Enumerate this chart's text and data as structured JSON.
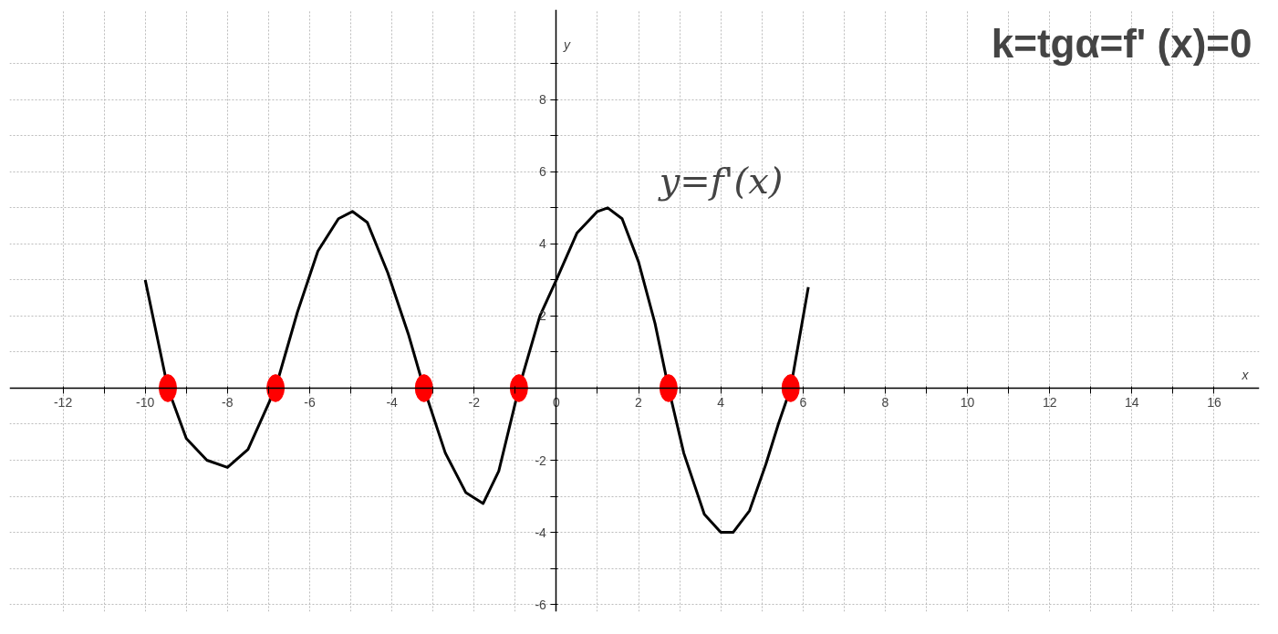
{
  "chart_data": {
    "type": "line",
    "title": "k=tgα=f' (x)=0",
    "xlabel": "x",
    "ylabel": "y",
    "annotations": [
      "y=f'(x)"
    ],
    "series": [
      {
        "color": "#000000",
        "x": [
          -10,
          -9.45,
          -9,
          -8.5,
          -8,
          -7.5,
          -6.83,
          -6.3,
          -5.8,
          -5.3,
          -4.96,
          -4.6,
          -4.1,
          -3.6,
          -3.22,
          -2.7,
          -2.2,
          -1.78,
          -1.4,
          -0.91,
          -0.4,
          0,
          0.5,
          1,
          1.25,
          1.6,
          2,
          2.4,
          2.73,
          3.1,
          3.6,
          4,
          4.3,
          4.7,
          5.1,
          5.4,
          5.7,
          6.13
        ],
        "values": [
          3,
          0,
          -1.4,
          -2.0,
          -2.2,
          -1.7,
          0,
          2.1,
          3.8,
          4.7,
          4.9,
          4.6,
          3.2,
          1.5,
          0,
          -1.8,
          -2.9,
          -3.2,
          -2.3,
          0,
          2.0,
          3,
          4.3,
          4.9,
          5,
          4.7,
          3.5,
          1.8,
          0,
          -1.8,
          -3.5,
          -4,
          -4,
          -3.4,
          -2.1,
          -1.0,
          0,
          2.8
        ]
      },
      {
        "type": "scatter",
        "marker": "circle",
        "color": "#ff0000",
        "x": [
          -9.45,
          -6.83,
          -3.22,
          -0.91,
          2.73,
          5.7
        ],
        "values": [
          0,
          0,
          0,
          0,
          0,
          0
        ]
      }
    ],
    "xlim": [
      -13.3,
      17.1
    ],
    "ylim": [
      -6.2,
      10.5
    ],
    "xticks": [
      -12,
      {
        "value": -11,
        "label": null
      },
      -10,
      {
        "value": -9,
        "label": null
      },
      -8,
      {
        "value": -7,
        "label": null
      },
      -6,
      {
        "value": -5,
        "label": null
      },
      -4,
      {
        "value": -3,
        "label": null
      },
      -2,
      {
        "value": -1,
        "label": null
      },
      0,
      {
        "value": 1,
        "label": null
      },
      2,
      {
        "value": 3,
        "label": null
      },
      4,
      {
        "value": 5,
        "label": null
      },
      6,
      {
        "value": 7,
        "label": null
      },
      8,
      {
        "value": 9,
        "label": null
      },
      10,
      {
        "value": 11,
        "label": null
      },
      12,
      {
        "value": 13,
        "label": null
      },
      14,
      {
        "value": 15,
        "label": null
      },
      16
    ],
    "yticks": [
      -6,
      {
        "value": -5,
        "label": null
      },
      -4,
      {
        "value": -3,
        "label": null
      },
      -2,
      {
        "value": -1,
        "label": null
      },
      {
        "value": 1,
        "label": null
      },
      2,
      {
        "value": 3,
        "label": null
      },
      4,
      {
        "value": 5,
        "label": null
      },
      6,
      {
        "value": 7,
        "label": null
      },
      8,
      {
        "value": 9,
        "label": null
      }
    ],
    "grid": true,
    "marker": "none",
    "line_style": "solid"
  }
}
